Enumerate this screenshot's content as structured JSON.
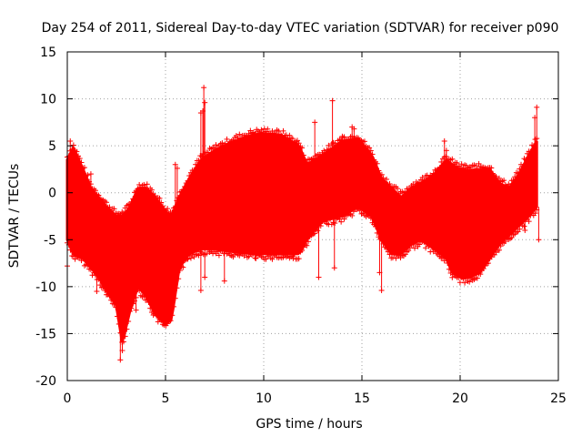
{
  "chart_data": {
    "type": "scatter",
    "title": "Day 254 of 2011, Sidereal Day-to-day VTEC variation (SDTVAR) for receiver p090",
    "xlabel": "GPS time / hours",
    "ylabel": "SDTVAR / TECUs",
    "xlim": [
      0,
      25
    ],
    "ylim": [
      -20,
      15
    ],
    "xticks": [
      0,
      5,
      10,
      15,
      20,
      25
    ],
    "yticks": [
      -20,
      -15,
      -10,
      -5,
      0,
      5,
      10,
      15
    ],
    "xtick_labels": [
      "0",
      "5",
      "10",
      "15",
      "20",
      "25"
    ],
    "ytick_labels": [
      "-20",
      "-15",
      "-10",
      "-5",
      "0",
      "5",
      "10",
      "15"
    ],
    "grid": true,
    "marker": "+",
    "color": "#ff0000",
    "envelope": {
      "x": [
        0,
        0.3,
        0.8,
        1.2,
        1.6,
        2.0,
        2.5,
        2.8,
        3.2,
        3.6,
        4.0,
        4.5,
        5.0,
        5.3,
        5.7,
        6.2,
        6.8,
        7.5,
        8.5,
        9.5,
        10.2,
        11.0,
        11.8,
        12.2,
        13.0,
        14.0,
        14.8,
        15.5,
        16.0,
        16.5,
        17.0,
        17.5,
        18.0,
        18.7,
        19.3,
        19.6,
        20.0,
        20.5,
        21.0,
        21.5,
        22.0,
        22.5,
        23.0,
        23.5,
        23.9
      ],
      "upper": [
        3.5,
        4.8,
        2.5,
        0.5,
        -0.5,
        -1.5,
        -2.5,
        -2.5,
        -1.5,
        0.5,
        0.5,
        -0.5,
        -2.0,
        -2.5,
        -0.5,
        1.5,
        3.5,
        4.5,
        5.5,
        6.2,
        6.3,
        6.0,
        5.0,
        3.0,
        4.0,
        5.5,
        5.8,
        4.0,
        1.5,
        0.5,
        -0.5,
        0.5,
        1.0,
        2.0,
        3.5,
        3.0,
        2.5,
        2.4,
        2.5,
        2.5,
        1.0,
        0.5,
        2.0,
        4.0,
        5.5
      ],
      "lower": [
        -5.0,
        -6.5,
        -7.0,
        -8.0,
        -9.0,
        -10.5,
        -12.0,
        -16.0,
        -12.5,
        -10.0,
        -11.0,
        -13.0,
        -14.0,
        -13.5,
        -8.0,
        -6.5,
        -6.0,
        -6.0,
        -6.3,
        -6.5,
        -6.5,
        -6.5,
        -6.5,
        -5.0,
        -3.0,
        -2.5,
        -1.5,
        -2.5,
        -5.0,
        -6.5,
        -6.5,
        -5.5,
        -5.0,
        -6.0,
        -7.0,
        -8.5,
        -9.0,
        -9.0,
        -8.5,
        -7.0,
        -5.5,
        -4.5,
        -3.5,
        -2.5,
        -1.5
      ]
    },
    "outliers": [
      {
        "x": 6.8,
        "y": 8.5
      },
      {
        "x": 6.9,
        "y": 8.7
      },
      {
        "x": 6.95,
        "y": 11.2
      },
      {
        "x": 7.0,
        "y": 9.6
      },
      {
        "x": 5.5,
        "y": 3.0
      },
      {
        "x": 5.6,
        "y": 2.6
      },
      {
        "x": 6.8,
        "y": -10.4
      },
      {
        "x": 7.0,
        "y": -9.0
      },
      {
        "x": 8.0,
        "y": -9.4
      },
      {
        "x": 12.6,
        "y": 7.5
      },
      {
        "x": 13.5,
        "y": 9.8
      },
      {
        "x": 13.2,
        "y": 2.5
      },
      {
        "x": 12.8,
        "y": -9.0
      },
      {
        "x": 13.6,
        "y": -8.0
      },
      {
        "x": 14.0,
        "y": 6.0
      },
      {
        "x": 14.5,
        "y": 7.0
      },
      {
        "x": 14.6,
        "y": 6.8
      },
      {
        "x": 16.0,
        "y": -10.4
      },
      {
        "x": 15.9,
        "y": -8.5
      },
      {
        "x": 19.2,
        "y": 5.5
      },
      {
        "x": 19.3,
        "y": 4.5
      },
      {
        "x": 23.3,
        "y": -4.0
      },
      {
        "x": 23.9,
        "y": 9.1
      },
      {
        "x": 23.8,
        "y": 8.0
      },
      {
        "x": 24.0,
        "y": -5.0
      },
      {
        "x": 2.7,
        "y": -17.8
      },
      {
        "x": 2.8,
        "y": -16.8
      },
      {
        "x": 1.5,
        "y": -10.5
      },
      {
        "x": 1.2,
        "y": 2.0
      },
      {
        "x": 0.0,
        "y": -7.8
      },
      {
        "x": 3.5,
        "y": -12.5
      },
      {
        "x": 11.5,
        "y": -7.0
      },
      {
        "x": 9.6,
        "y": -7.0
      },
      {
        "x": 0.15,
        "y": 5.5
      },
      {
        "x": 5.2,
        "y": -13.0
      }
    ]
  }
}
